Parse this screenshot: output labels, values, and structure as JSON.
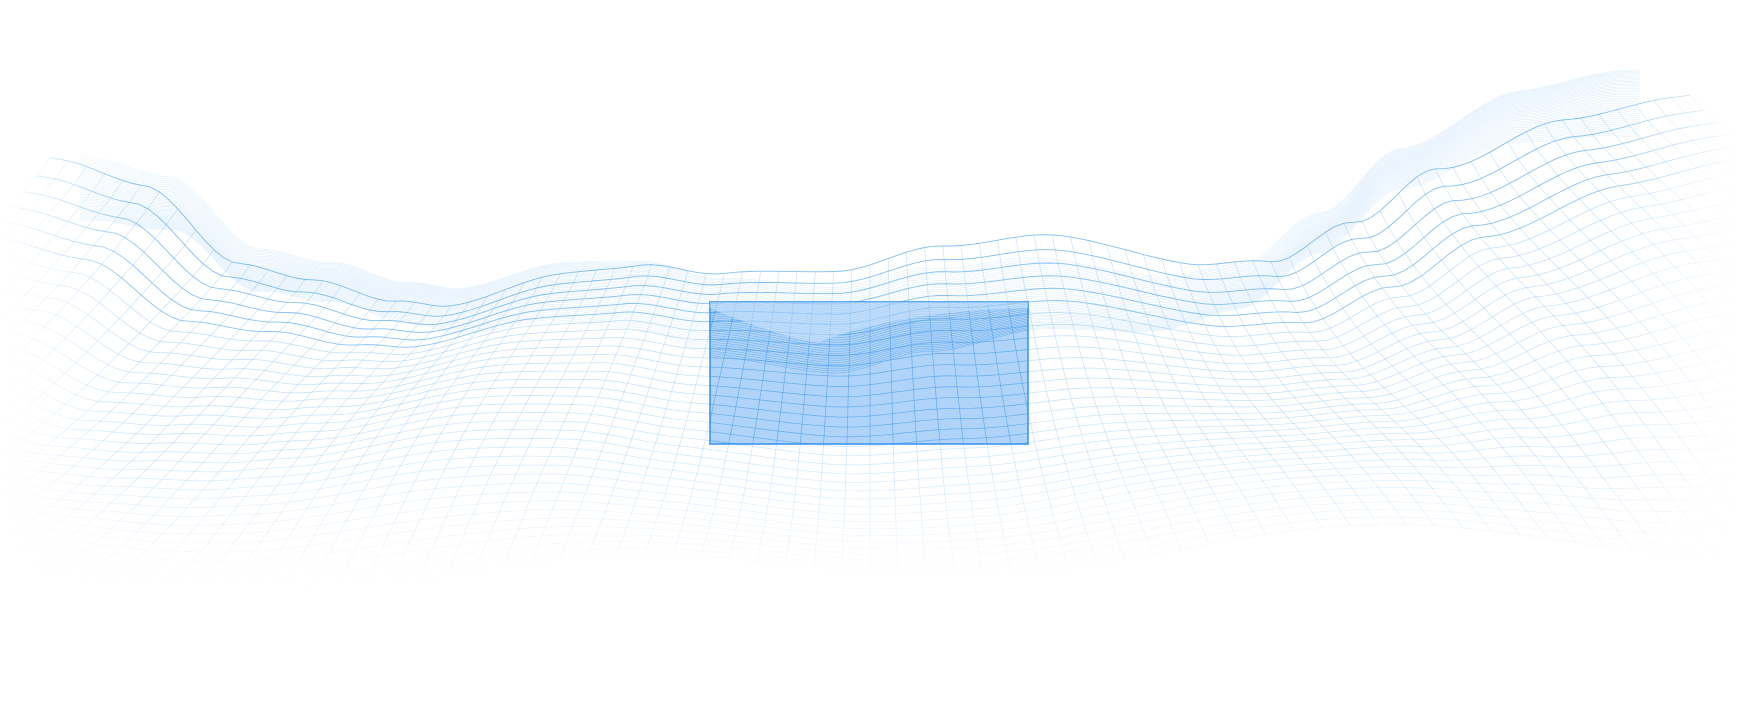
{
  "scene": {
    "background_color": "#ffffff",
    "mesh_color": "#9ccaf7",
    "mesh_color_dark": "#5aa8f0",
    "highlight_fill": "#7fbaf5",
    "highlight_stroke": "#3d95ee",
    "icons": [
      "wave-mesh-illustration"
    ]
  }
}
